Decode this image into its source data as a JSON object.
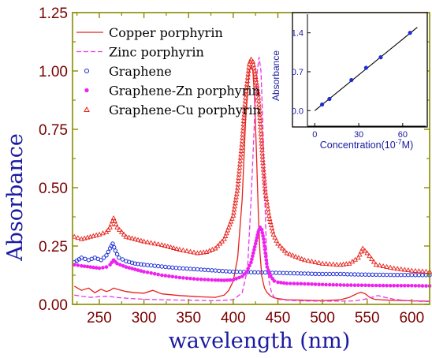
{
  "chart_data": [
    {
      "type": "line",
      "xlabel": "wavelength (nm)",
      "ylabel": "Absorbance",
      "xlim": [
        220,
        620
      ],
      "ylim": [
        0.0,
        1.25
      ],
      "xticks": [
        250,
        300,
        350,
        400,
        450,
        500,
        550,
        600
      ],
      "xtick_labels": [
        "250",
        "300",
        "350",
        "400",
        "450",
        "500",
        "550",
        "600"
      ],
      "yticks": [
        0.0,
        0.25,
        0.5,
        0.75,
        1.0,
        1.25
      ],
      "ytick_labels": [
        "0.00",
        "0.25",
        "0.50",
        "0.75",
        "1.00",
        "1.25"
      ],
      "legend_position": "top-left",
      "grid": false,
      "colors": {
        "axis": "#8b8b00",
        "tick_text": "#7a0000",
        "ylabel": "#1a1aa0",
        "xlabel": "#1a1aa0"
      },
      "series": [
        {
          "name": "Copper porphyrin",
          "style": "line",
          "color": "#e8201a",
          "x": [
            222,
            230,
            238,
            245,
            252,
            258,
            262,
            266,
            270,
            280,
            290,
            300,
            310,
            320,
            340,
            360,
            380,
            390,
            395,
            400,
            405,
            410,
            414,
            418,
            420,
            422,
            424,
            426,
            428,
            430,
            432,
            435,
            438,
            442,
            446,
            450,
            460,
            480,
            500,
            520,
            530,
            538,
            543,
            548,
            553,
            558,
            565,
            575,
            585,
            595,
            605,
            615,
            620
          ],
          "y": [
            0.078,
            0.06,
            0.07,
            0.05,
            0.065,
            0.055,
            0.06,
            0.07,
            0.065,
            0.055,
            0.05,
            0.048,
            0.06,
            0.045,
            0.038,
            0.033,
            0.03,
            0.04,
            0.06,
            0.1,
            0.2,
            0.45,
            0.8,
            1.0,
            1.02,
            1.0,
            0.88,
            0.65,
            0.4,
            0.22,
            0.12,
            0.07,
            0.05,
            0.035,
            0.028,
            0.025,
            0.02,
            0.018,
            0.016,
            0.02,
            0.03,
            0.045,
            0.052,
            0.045,
            0.03,
            0.022,
            0.02,
            0.018,
            0.017,
            0.016,
            0.015,
            0.014,
            0.014
          ]
        },
        {
          "name": "Zinc porphyrin",
          "style": "dashed",
          "color": "#ee33ee",
          "x": [
            222,
            230,
            240,
            250,
            260,
            268,
            275,
            285,
            300,
            320,
            350,
            380,
            400,
            410,
            416,
            420,
            424,
            427,
            429,
            431,
            433,
            435,
            437,
            440,
            443,
            446,
            450,
            460,
            480,
            500,
            520,
            535,
            545,
            555,
            562,
            570,
            580,
            590,
            600,
            610,
            620
          ],
          "y": [
            0.04,
            0.035,
            0.03,
            0.033,
            0.035,
            0.03,
            0.028,
            0.025,
            0.022,
            0.02,
            0.018,
            0.016,
            0.02,
            0.05,
            0.15,
            0.45,
            0.8,
            1.0,
            1.06,
            1.0,
            0.8,
            0.5,
            0.25,
            0.1,
            0.05,
            0.03,
            0.022,
            0.018,
            0.015,
            0.014,
            0.014,
            0.015,
            0.02,
            0.03,
            0.038,
            0.03,
            0.022,
            0.018,
            0.015,
            0.013,
            0.012
          ]
        },
        {
          "name": "Graphene",
          "style": "circle-markers",
          "color": "#1f2fd6",
          "x": [
            222,
            230,
            238,
            245,
            252,
            258,
            262,
            265,
            268,
            272,
            280,
            290,
            300,
            320,
            340,
            360,
            380,
            400,
            420,
            440,
            460,
            480,
            500,
            520,
            540,
            560,
            580,
            600,
            620
          ],
          "y": [
            0.18,
            0.2,
            0.19,
            0.2,
            0.19,
            0.21,
            0.24,
            0.26,
            0.23,
            0.2,
            0.185,
            0.175,
            0.17,
            0.162,
            0.155,
            0.15,
            0.145,
            0.14,
            0.138,
            0.136,
            0.134,
            0.132,
            0.13,
            0.13,
            0.128,
            0.127,
            0.126,
            0.126,
            0.125
          ]
        },
        {
          "name": "Graphene-Zn porphyrin",
          "style": "star-markers",
          "color": "#ee22ee",
          "x": [
            222,
            230,
            240,
            250,
            258,
            262,
            266,
            270,
            280,
            290,
            300,
            320,
            340,
            360,
            380,
            390,
            400,
            410,
            415,
            420,
            425,
            428,
            430,
            432,
            434,
            436,
            438,
            442,
            446,
            450,
            460,
            480,
            500,
            520,
            540,
            560,
            580,
            600,
            620
          ],
          "y": [
            0.17,
            0.165,
            0.16,
            0.155,
            0.16,
            0.17,
            0.19,
            0.175,
            0.16,
            0.15,
            0.14,
            0.125,
            0.115,
            0.108,
            0.104,
            0.103,
            0.105,
            0.12,
            0.14,
            0.18,
            0.26,
            0.31,
            0.33,
            0.32,
            0.28,
            0.22,
            0.16,
            0.12,
            0.1,
            0.095,
            0.09,
            0.088,
            0.085,
            0.083,
            0.082,
            0.081,
            0.08,
            0.08,
            0.079
          ]
        },
        {
          "name": "Graphene-Cu porphyrin",
          "style": "triangle-markers",
          "color": "#e8201a",
          "x": [
            222,
            230,
            240,
            250,
            258,
            262,
            266,
            270,
            275,
            280,
            290,
            300,
            320,
            340,
            360,
            370,
            380,
            390,
            400,
            405,
            410,
            414,
            418,
            420,
            422,
            424,
            426,
            428,
            430,
            433,
            436,
            440,
            445,
            450,
            460,
            480,
            500,
            520,
            530,
            540,
            545,
            550,
            560,
            580,
            600,
            620
          ],
          "y": [
            0.29,
            0.28,
            0.29,
            0.3,
            0.31,
            0.33,
            0.37,
            0.33,
            0.31,
            0.29,
            0.28,
            0.27,
            0.255,
            0.235,
            0.22,
            0.225,
            0.24,
            0.28,
            0.38,
            0.5,
            0.7,
            0.9,
            1.03,
            1.05,
            1.04,
            1.0,
            0.95,
            0.9,
            0.8,
            0.62,
            0.48,
            0.38,
            0.3,
            0.26,
            0.22,
            0.19,
            0.175,
            0.17,
            0.175,
            0.2,
            0.24,
            0.22,
            0.17,
            0.155,
            0.145,
            0.14
          ]
        }
      ]
    },
    {
      "type": "scatter",
      "placement": "inset-top-right",
      "xlabel": "Concentration(10",
      "xlabel_sup": "-7",
      "xlabel_tail": "M)",
      "ylabel": "Absorbance",
      "xlim": [
        -5,
        73
      ],
      "ylim": [
        -0.28,
        1.75
      ],
      "xticks": [
        0,
        30,
        60
      ],
      "xtick_labels": [
        "0",
        "30",
        "60"
      ],
      "yticks": [
        0.0,
        0.7,
        1.4
      ],
      "ytick_labels": [
        "0.0",
        "0.7",
        "1.4"
      ],
      "colors": {
        "points": "#1f2fd6",
        "fit": "#000000",
        "text": "#1a1aa0"
      },
      "points_x": [
        5,
        10,
        25,
        35,
        45,
        65
      ],
      "points_y": [
        0.11,
        0.21,
        0.55,
        0.77,
        0.96,
        1.4
      ],
      "fit_x": [
        0,
        70
      ],
      "fit_y": [
        0.0,
        1.5
      ]
    }
  ]
}
